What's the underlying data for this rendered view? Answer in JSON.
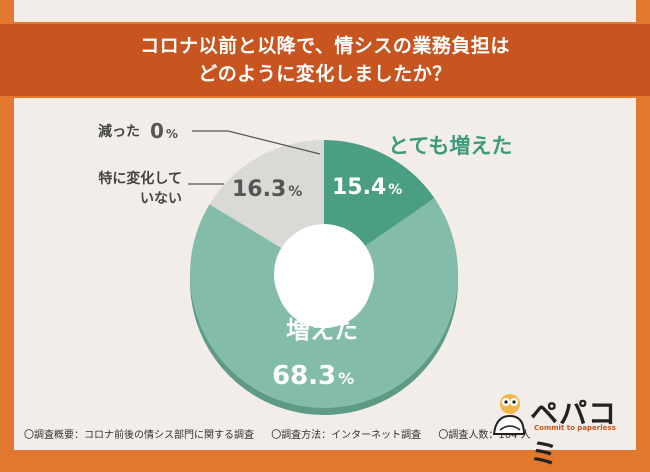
{
  "title": {
    "line1": "コロナ以前と以降で、情シスの業務負担は",
    "line2": "どのように変化しましたか？"
  },
  "chart_data": {
    "type": "pie",
    "slices": [
      {
        "label": "とても増えた",
        "value": 15.4,
        "value_label": "15.4",
        "color": "#4a9e83"
      },
      {
        "label": "増えた",
        "value": 68.3,
        "value_label": "68.3",
        "color": "#84bcaa"
      },
      {
        "label": "特に変化していない",
        "label_lines": [
          "特に変化して",
          "いない"
        ],
        "value": 16.3,
        "value_label": "16.3",
        "color": "#d9d9d6"
      },
      {
        "label": "減った",
        "value": 0,
        "value_label": "0",
        "color": "#999999"
      }
    ],
    "unit": "%"
  },
  "footer": {
    "overview": "〇調査概要：コロナ前後の情シス部門に関する調査",
    "method": "〇調査方法：インターネット調査",
    "count": "〇調査人数：104 人"
  },
  "logo": {
    "text": "ペパコミ",
    "tagline": "Commit to paperless"
  }
}
